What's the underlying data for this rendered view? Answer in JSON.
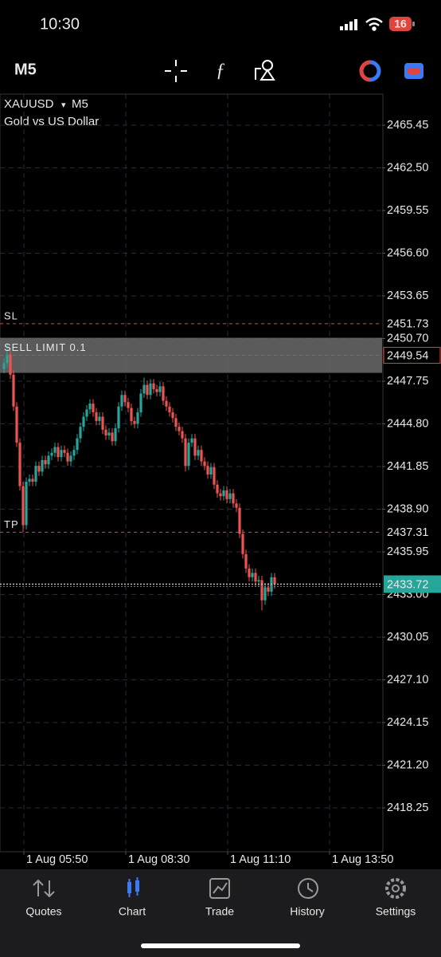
{
  "status_bar": {
    "time": "10:30",
    "battery": "16"
  },
  "toolbar": {
    "timeframe": "M5"
  },
  "chart_data": {
    "type": "candlestick",
    "symbol": "XAUUSD",
    "dropdown": "▾",
    "timeframe": "M5",
    "description": "Gold vs US Dollar",
    "up_color": "#26a69a",
    "down_color": "#ef5350",
    "grid": true,
    "x": [
      0,
      1,
      2,
      3,
      4,
      5,
      6,
      7,
      8,
      9,
      10,
      11,
      12,
      13,
      14,
      15,
      16,
      17,
      18,
      19,
      20,
      21,
      22,
      23,
      24,
      25,
      26,
      27,
      28,
      29,
      30,
      31,
      32,
      33,
      34,
      35,
      36,
      37,
      38,
      39,
      40,
      41,
      42,
      43,
      44,
      45,
      46,
      47,
      48,
      49,
      50,
      51,
      52,
      53,
      54,
      55,
      56,
      57,
      58,
      59,
      60,
      61,
      62,
      63,
      64,
      65,
      66,
      67,
      68,
      69,
      70,
      71,
      72,
      73,
      74,
      75,
      76,
      77,
      78,
      79,
      80,
      81,
      82,
      83,
      84,
      85
    ],
    "open": [
      2448.6,
      2449.0,
      2449.6,
      2448.2,
      2446.0,
      2443.5,
      2440.5,
      2437.8,
      2440.8,
      2441.0,
      2440.8,
      2441.9,
      2441.5,
      2442.3,
      2442.0,
      2442.6,
      2442.8,
      2443.2,
      2442.5,
      2443.0,
      2442.8,
      2442.2,
      2442.6,
      2443.0,
      2443.8,
      2444.6,
      2445.3,
      2445.8,
      2446.2,
      2445.6,
      2445.0,
      2445.3,
      2444.4,
      2444.0,
      2444.2,
      2443.6,
      2444.5,
      2446.0,
      2446.8,
      2446.3,
      2445.9,
      2445.0,
      2444.8,
      2445.6,
      2446.9,
      2447.5,
      2446.8,
      2447.6,
      2447.2,
      2447.0,
      2447.4,
      2446.4,
      2446.0,
      2445.6,
      2445.2,
      2444.6,
      2444.3,
      2443.8,
      2441.9,
      2443.5,
      2443.8,
      2442.6,
      2443.0,
      2442.2,
      2441.9,
      2441.3,
      2441.8,
      2440.6,
      2440.0,
      2439.8,
      2440.2,
      2439.6,
      2440.0,
      2439.3,
      2439.0,
      2437.2,
      2435.8,
      2434.8,
      2434.2,
      2434.5,
      2433.9,
      2434.0,
      2432.6,
      2433.5,
      2433.2,
      2434.2
    ],
    "high": [
      2449.3,
      2450.4,
      2449.9,
      2448.5,
      2446.3,
      2443.8,
      2440.8,
      2441.1,
      2441.3,
      2441.3,
      2442.2,
      2442.2,
      2442.6,
      2442.6,
      2442.9,
      2443.1,
      2443.5,
      2443.5,
      2443.3,
      2443.3,
      2443.1,
      2442.9,
      2443.3,
      2444.1,
      2444.9,
      2445.6,
      2446.1,
      2446.5,
      2446.5,
      2445.9,
      2445.6,
      2445.6,
      2444.7,
      2444.5,
      2444.5,
      2444.8,
      2446.3,
      2447.1,
      2447.1,
      2446.6,
      2446.2,
      2445.3,
      2445.9,
      2447.2,
      2448.0,
      2447.8,
      2447.9,
      2447.9,
      2447.5,
      2447.7,
      2447.7,
      2446.7,
      2446.3,
      2445.9,
      2445.5,
      2444.9,
      2444.6,
      2444.1,
      2443.8,
      2444.1,
      2444.1,
      2443.3,
      2443.3,
      2442.5,
      2442.2,
      2442.1,
      2442.1,
      2440.9,
      2440.3,
      2440.5,
      2440.5,
      2440.3,
      2440.3,
      2439.6,
      2439.3,
      2437.5,
      2436.1,
      2435.1,
      2434.8,
      2434.8,
      2434.3,
      2434.3,
      2433.8,
      2433.8,
      2434.5,
      2434.5
    ],
    "low": [
      2448.3,
      2448.7,
      2447.9,
      2445.7,
      2443.2,
      2440.2,
      2437.3,
      2437.5,
      2440.5,
      2440.5,
      2440.5,
      2441.2,
      2441.2,
      2441.7,
      2441.7,
      2442.3,
      2442.5,
      2442.2,
      2442.2,
      2442.5,
      2441.9,
      2441.9,
      2442.3,
      2442.7,
      2443.5,
      2444.3,
      2445.0,
      2445.5,
      2445.3,
      2444.7,
      2444.7,
      2444.1,
      2443.7,
      2443.7,
      2443.3,
      2443.3,
      2444.2,
      2445.7,
      2446.0,
      2445.6,
      2444.7,
      2444.5,
      2444.5,
      2445.3,
      2446.6,
      2446.5,
      2446.5,
      2446.9,
      2446.7,
      2446.7,
      2446.1,
      2445.7,
      2445.3,
      2444.9,
      2444.3,
      2444.0,
      2443.5,
      2441.5,
      2441.6,
      2443.2,
      2442.3,
      2442.3,
      2441.9,
      2441.6,
      2441.0,
      2441.0,
      2440.3,
      2439.7,
      2439.5,
      2439.5,
      2439.3,
      2439.3,
      2439.0,
      2438.7,
      2436.9,
      2435.5,
      2434.5,
      2433.9,
      2433.9,
      2433.6,
      2433.6,
      2431.9,
      2432.3,
      2432.9,
      2432.9,
      2433.4
    ],
    "close": [
      2449.0,
      2449.6,
      2448.2,
      2446.0,
      2443.5,
      2440.5,
      2437.8,
      2440.8,
      2441.0,
      2440.8,
      2441.9,
      2441.5,
      2442.3,
      2442.0,
      2442.6,
      2442.8,
      2443.2,
      2442.5,
      2443.0,
      2442.8,
      2442.2,
      2442.6,
      2443.0,
      2443.8,
      2444.6,
      2445.3,
      2445.8,
      2446.2,
      2445.6,
      2445.0,
      2445.3,
      2444.4,
      2444.0,
      2444.2,
      2443.6,
      2444.5,
      2446.0,
      2446.8,
      2446.3,
      2445.9,
      2445.0,
      2444.8,
      2445.6,
      2446.9,
      2447.5,
      2446.8,
      2447.6,
      2447.2,
      2447.0,
      2447.4,
      2446.4,
      2446.0,
      2445.6,
      2445.2,
      2444.6,
      2444.3,
      2443.8,
      2441.9,
      2443.5,
      2443.8,
      2442.6,
      2443.0,
      2442.2,
      2441.9,
      2441.3,
      2441.8,
      2440.6,
      2440.0,
      2439.8,
      2440.2,
      2439.6,
      2440.0,
      2439.3,
      2439.0,
      2437.2,
      2435.8,
      2434.8,
      2434.2,
      2434.5,
      2433.9,
      2434.0,
      2432.6,
      2433.5,
      2433.2,
      2434.2,
      2433.72
    ],
    "xlim": [
      -1.25,
      118.75
    ],
    "xticks": [
      {
        "value": 6.25,
        "label": "1 Aug 05:50"
      },
      {
        "value": 38.25,
        "label": "1 Aug 08:30"
      },
      {
        "value": 70.25,
        "label": "1 Aug 11:10"
      },
      {
        "value": 102.25,
        "label": "1 Aug 13:50"
      }
    ],
    "ylim": [
      2415.22,
      2467.6
    ],
    "yticks": [
      2465.45,
      {
        "value": 2462.5,
        "label": "2462.50"
      },
      2459.55,
      {
        "value": 2456.6,
        "label": "2456.60"
      },
      2453.65,
      {
        "value": 2450.7,
        "label": "2450.70"
      },
      2447.75,
      {
        "value": 2444.8,
        "label": "2444.80"
      },
      2441.85,
      {
        "value": 2438.9,
        "label": "2438.90"
      },
      2435.95,
      {
        "value": 2433,
        "label": "2433.00"
      },
      2430.05,
      {
        "value": 2427.1,
        "label": "2427.10"
      },
      2424.15,
      {
        "value": 2421.2,
        "label": "2421.20"
      },
      2418.25
    ],
    "orders": [
      {
        "label": "SL",
        "price": 2451.73
      },
      {
        "label": "SELL LIMIT 0.1",
        "price": 2449.54
      },
      {
        "label": "TP",
        "price": 2437.31
      }
    ],
    "order_color": "#e0443c",
    "selected_order": 1,
    "last_price": 2433.72,
    "last_price_color": "#26a69a"
  },
  "nav": {
    "items": [
      "Quotes",
      "Chart",
      "Trade",
      "History",
      "Settings"
    ],
    "active": 1
  }
}
